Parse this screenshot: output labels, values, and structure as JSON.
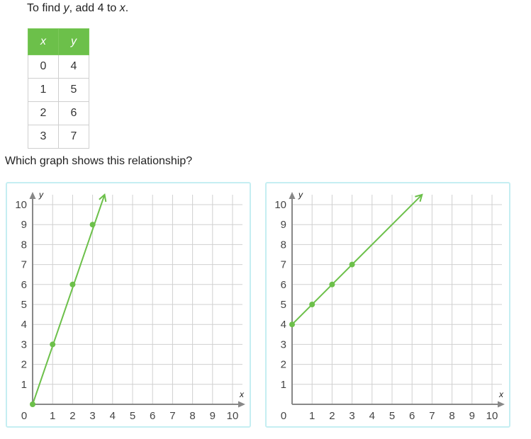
{
  "prompt": {
    "pre": "To find ",
    "var_y": "y",
    "mid": ", add 4 to ",
    "var_x": "x",
    "post": "."
  },
  "table": {
    "headers": [
      "x",
      "y"
    ],
    "rows": [
      [
        "0",
        "4"
      ],
      [
        "1",
        "5"
      ],
      [
        "2",
        "6"
      ],
      [
        "3",
        "7"
      ]
    ]
  },
  "question": "Which graph shows this relationship?",
  "colors": {
    "accent": "#6cc04a",
    "grid": "#d0d0d0",
    "axis": "#888888",
    "choice_border": "#c5eef2"
  },
  "chart_data": [
    {
      "type": "line",
      "xlabel": "x",
      "ylabel": "y",
      "xlim": [
        0,
        10
      ],
      "ylim": [
        0,
        10
      ],
      "x_ticks": [
        "0",
        "1",
        "2",
        "3",
        "4",
        "5",
        "6",
        "7",
        "8",
        "9",
        "10"
      ],
      "y_ticks": [
        "1",
        "2",
        "3",
        "4",
        "5",
        "6",
        "7",
        "8",
        "9",
        "10"
      ],
      "grid": true,
      "series": [
        {
          "points": [
            [
              0,
              0
            ],
            [
              1,
              3
            ],
            [
              2,
              6
            ],
            [
              3,
              9
            ]
          ],
          "line_from": [
            0,
            0
          ],
          "line_to": [
            3.6,
            10.5
          ]
        }
      ]
    },
    {
      "type": "line",
      "xlabel": "x",
      "ylabel": "y",
      "xlim": [
        0,
        10
      ],
      "ylim": [
        0,
        10
      ],
      "x_ticks": [
        "0",
        "1",
        "2",
        "3",
        "4",
        "5",
        "6",
        "7",
        "8",
        "9",
        "10"
      ],
      "y_ticks": [
        "1",
        "2",
        "3",
        "4",
        "5",
        "6",
        "7",
        "8",
        "9",
        "10"
      ],
      "grid": true,
      "series": [
        {
          "points": [
            [
              0,
              4
            ],
            [
              1,
              5
            ],
            [
              2,
              6
            ],
            [
              3,
              7
            ]
          ],
          "line_from": [
            0,
            4
          ],
          "line_to": [
            6.5,
            10.5
          ]
        }
      ]
    }
  ]
}
